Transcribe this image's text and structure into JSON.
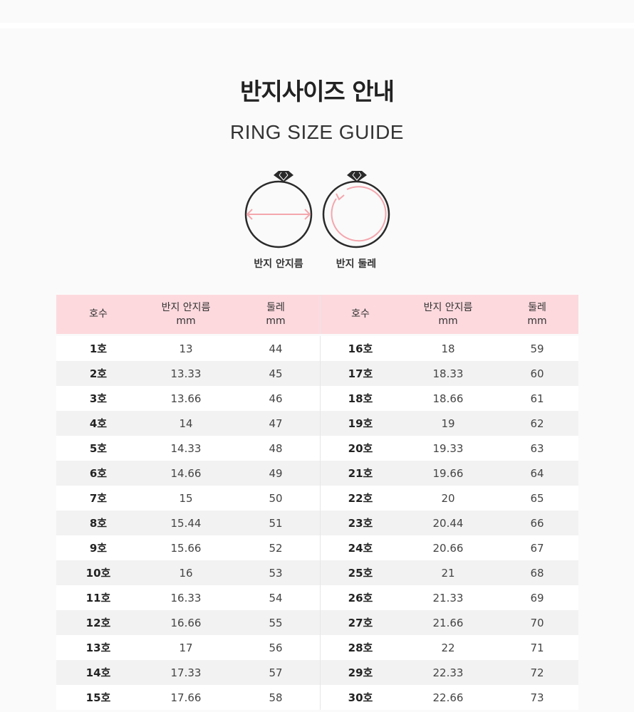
{
  "title": "반지사이즈 안내",
  "subtitle": "RING SIZE GUIDE",
  "icons": {
    "diameter_label": "반지 안지름",
    "circumference_label": "반지 둘레",
    "accent": "#f4a6ad"
  },
  "table": {
    "header": {
      "size": "호수",
      "diameter": "반지 안지름",
      "circumference": "둘레",
      "unit": "mm"
    },
    "header_color": "#fdd9de",
    "left": [
      [
        "1호",
        "13",
        "44"
      ],
      [
        "2호",
        "13.33",
        "45"
      ],
      [
        "3호",
        "13.66",
        "46"
      ],
      [
        "4호",
        "14",
        "47"
      ],
      [
        "5호",
        "14.33",
        "48"
      ],
      [
        "6호",
        "14.66",
        "49"
      ],
      [
        "7호",
        "15",
        "50"
      ],
      [
        "8호",
        "15.44",
        "51"
      ],
      [
        "9호",
        "15.66",
        "52"
      ],
      [
        "10호",
        "16",
        "53"
      ],
      [
        "11호",
        "16.33",
        "54"
      ],
      [
        "12호",
        "16.66",
        "55"
      ],
      [
        "13호",
        "17",
        "56"
      ],
      [
        "14호",
        "17.33",
        "57"
      ],
      [
        "15호",
        "17.66",
        "58"
      ]
    ],
    "right": [
      [
        "16호",
        "18",
        "59"
      ],
      [
        "17호",
        "18.33",
        "60"
      ],
      [
        "18호",
        "18.66",
        "61"
      ],
      [
        "19호",
        "19",
        "62"
      ],
      [
        "20호",
        "19.33",
        "63"
      ],
      [
        "21호",
        "19.66",
        "64"
      ],
      [
        "22호",
        "20",
        "65"
      ],
      [
        "23호",
        "20.44",
        "66"
      ],
      [
        "24호",
        "20.66",
        "67"
      ],
      [
        "25호",
        "21",
        "68"
      ],
      [
        "26호",
        "21.33",
        "69"
      ],
      [
        "27호",
        "21.66",
        "70"
      ],
      [
        "28호",
        "22",
        "71"
      ],
      [
        "29호",
        "22.33",
        "72"
      ],
      [
        "30호",
        "22.66",
        "73"
      ]
    ]
  }
}
